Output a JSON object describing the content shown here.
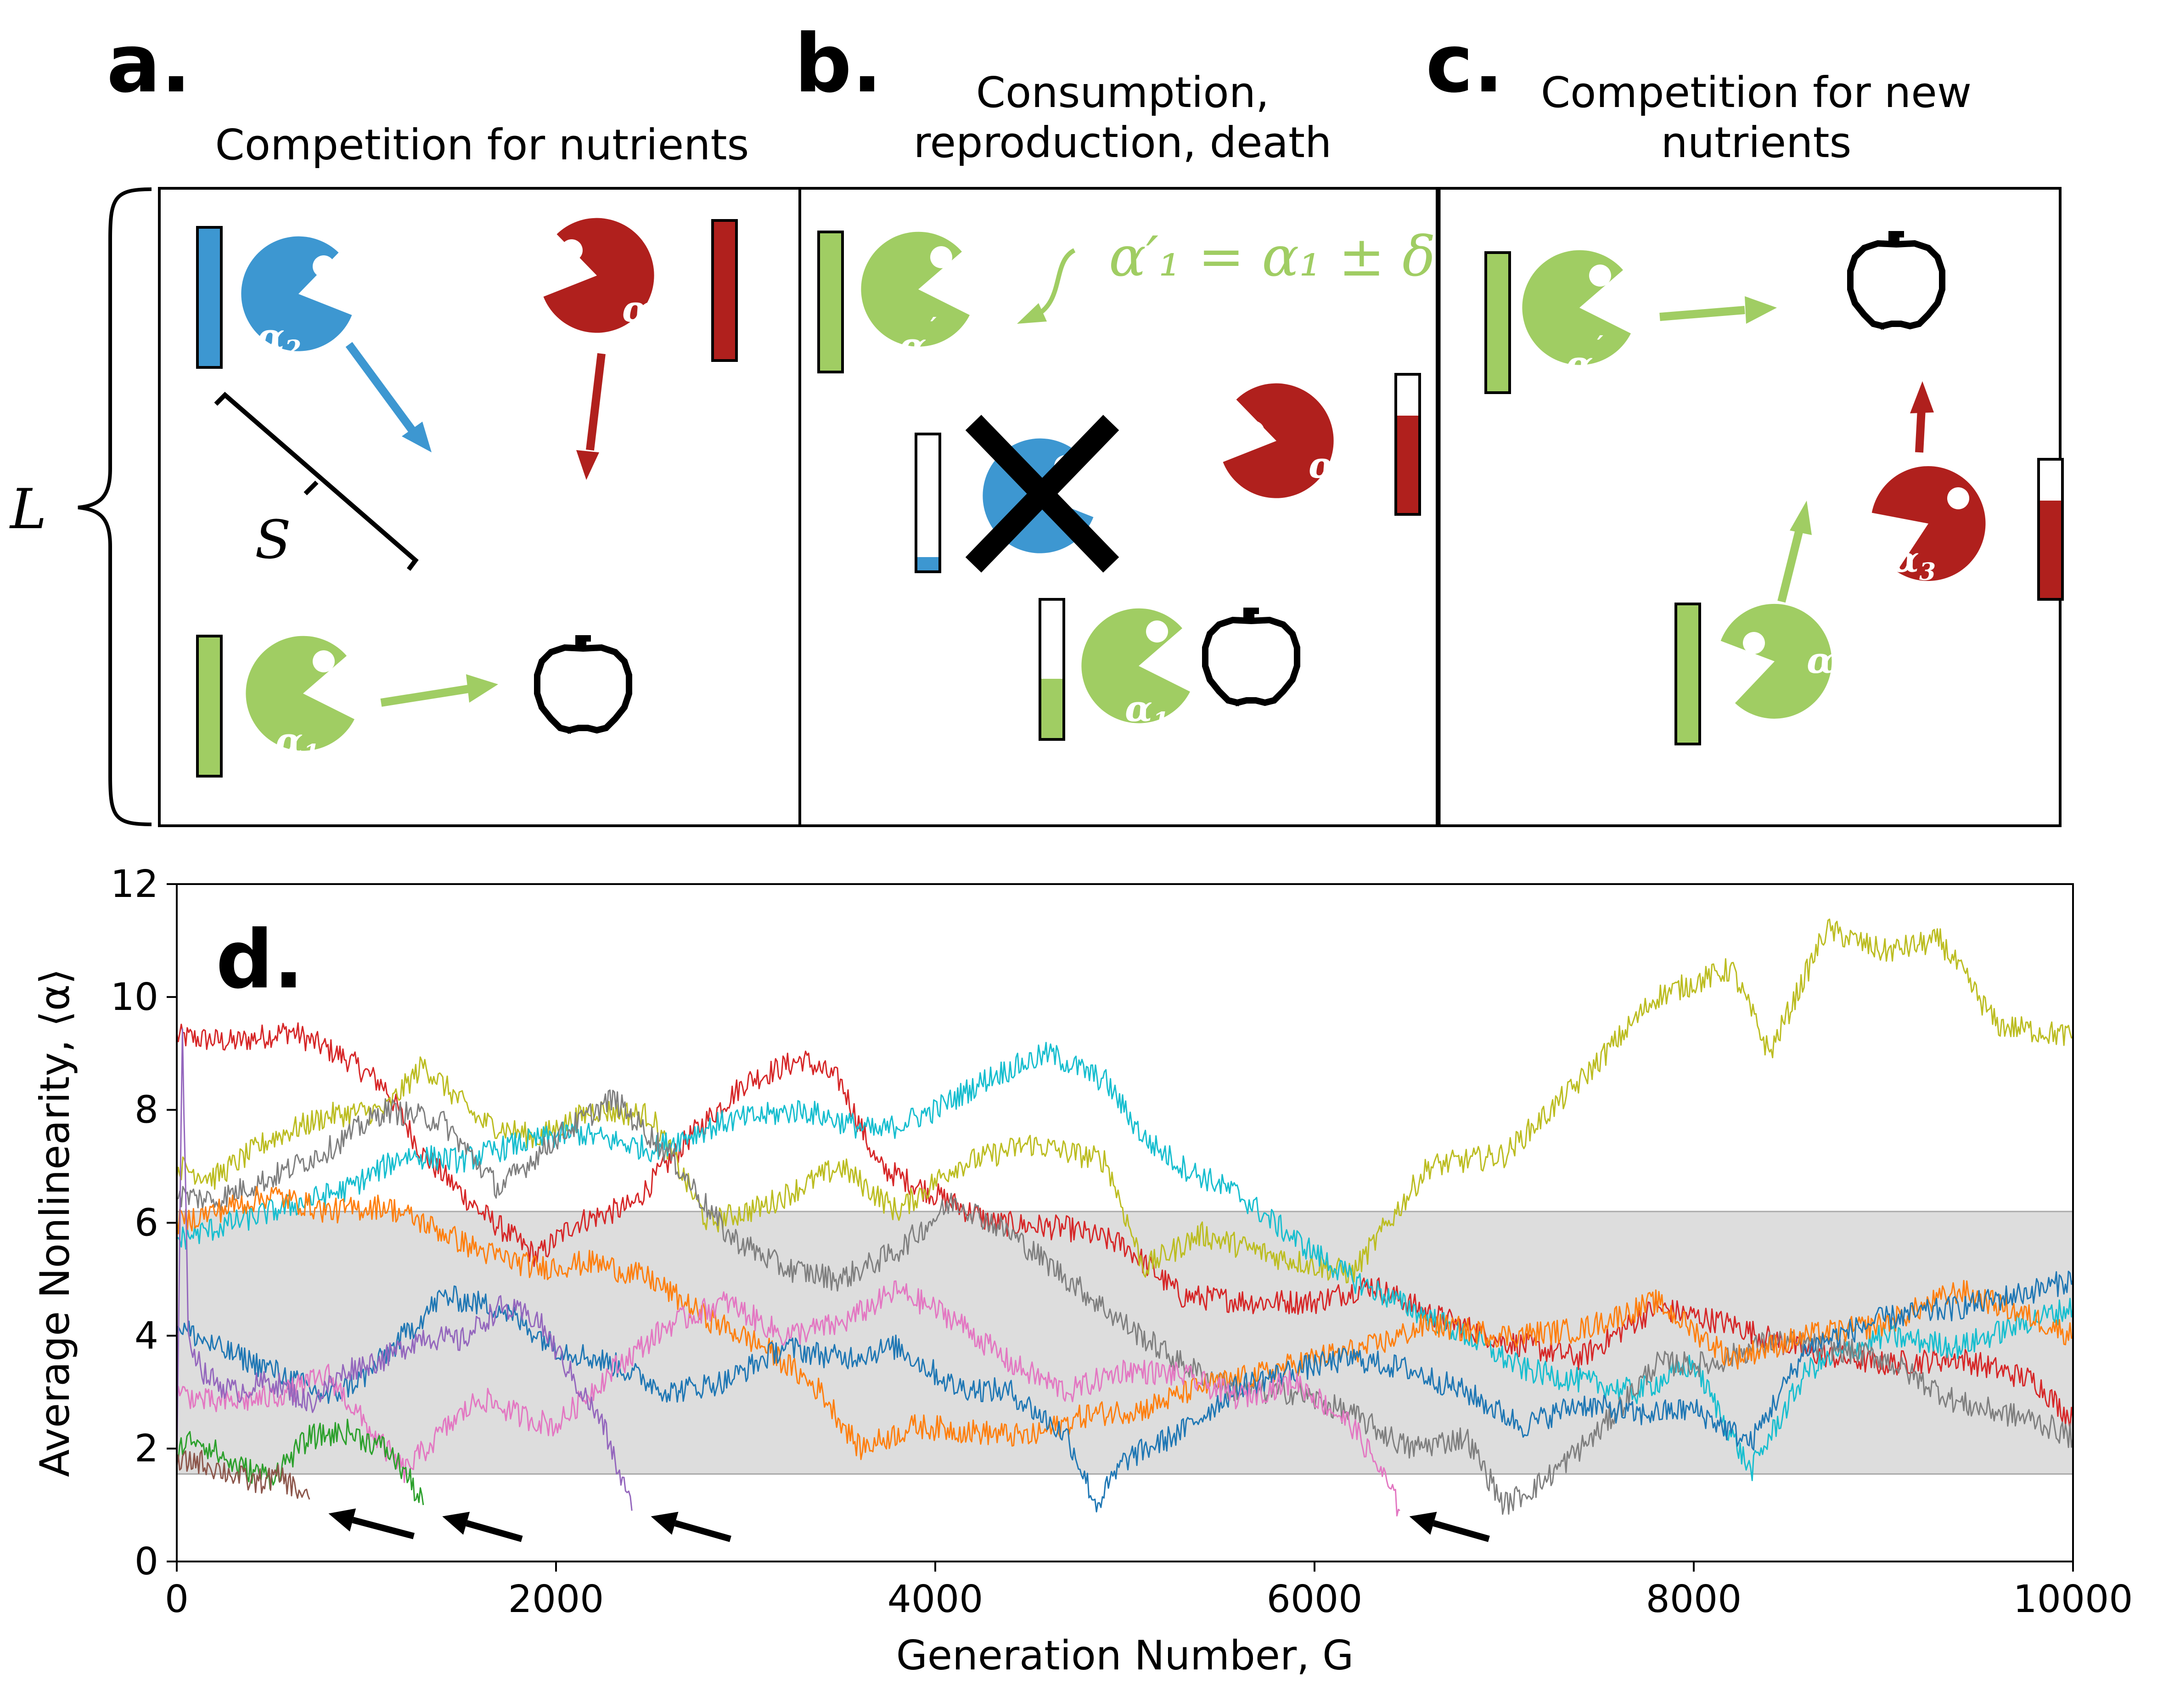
{
  "panels": {
    "a": {
      "letter": "a.",
      "title": "Competition for nutrients"
    },
    "b": {
      "letter": "b.",
      "title_line1": "Consumption,",
      "title_line2": "reproduction, death"
    },
    "c": {
      "letter": "c.",
      "title_line1": "Competition for new",
      "title_line2": "nutrients"
    },
    "d": {
      "letter": "d."
    }
  },
  "labels": {
    "L": "L",
    "S": "S",
    "alpha": "α",
    "sub1": "1",
    "sub2": "2",
    "sub3": "3",
    "prime": "′",
    "mutation": "α′₁ = α₁ ± δ"
  },
  "colors": {
    "green": "#a0cd63",
    "blue": "#3d97d1",
    "red": "#b0201d",
    "band": "#dddddd"
  },
  "icons": [
    "pacman-icon",
    "apple-icon",
    "energy-bar-icon",
    "death-cross-icon",
    "arrow-icon"
  ],
  "chart_data": {
    "type": "line",
    "xlabel": "Generation Number, G",
    "ylabel": "Average Nonlinearity, ⟨α⟩",
    "xlim": [
      0,
      10000
    ],
    "ylim": [
      0,
      12
    ],
    "xticks": [
      "0",
      "2000",
      "4000",
      "6000",
      "8000",
      "10000"
    ],
    "yticks": [
      "0",
      "2",
      "4",
      "6",
      "8",
      "10",
      "12"
    ],
    "band": {
      "ymin": 1.55,
      "ymax": 6.2
    },
    "series": [
      {
        "name": "red",
        "color": "#d62728",
        "x": [
          0,
          300,
          600,
          900,
          1100,
          1300,
          1600,
          1900,
          2100,
          2400,
          2700,
          3000,
          3300,
          3500,
          3700,
          4000,
          4300,
          4700,
          5000,
          5300,
          5700,
          6000,
          6300,
          6600,
          7000,
          7400,
          7800,
          8200,
          8600,
          9000,
          9400,
          9800,
          10000
        ],
        "y": [
          9.3,
          9.2,
          9.4,
          8.9,
          8.4,
          7.2,
          6.2,
          5.4,
          6.0,
          6.3,
          7.5,
          8.5,
          8.9,
          8.5,
          7.0,
          6.5,
          6.0,
          5.9,
          5.6,
          4.7,
          4.6,
          4.6,
          4.9,
          4.4,
          3.9,
          3.6,
          4.5,
          4.2,
          3.7,
          3.5,
          3.6,
          3.2,
          2.5
        ]
      },
      {
        "name": "olive",
        "color": "#bcbd22",
        "x": [
          0,
          200,
          500,
          800,
          1100,
          1300,
          1600,
          1900,
          2200,
          2500,
          2800,
          3100,
          3500,
          3800,
          4100,
          4500,
          4900,
          5100,
          5400,
          5800,
          6200,
          6600,
          7000,
          7400,
          7800,
          8200,
          8400,
          8700,
          9000,
          9300,
          9600,
          10000
        ],
        "y": [
          7.0,
          6.8,
          7.5,
          7.9,
          8.0,
          8.8,
          7.8,
          7.5,
          8.0,
          7.9,
          6.0,
          6.3,
          7.0,
          6.2,
          7.0,
          7.4,
          7.1,
          5.2,
          5.8,
          5.4,
          5.1,
          7.0,
          7.2,
          8.5,
          10.0,
          10.5,
          9.0,
          11.2,
          10.8,
          11.0,
          9.5,
          9.3
        ]
      },
      {
        "name": "cyan",
        "color": "#17becf",
        "x": [
          0,
          300,
          600,
          900,
          1200,
          1500,
          1800,
          2100,
          2500,
          2900,
          3300,
          3700,
          4000,
          4300,
          4600,
          4900,
          5100,
          5300,
          5600,
          5900,
          6200,
          6500,
          6800,
          7100,
          7400,
          7700,
          8000,
          8300,
          8600,
          9000,
          9400,
          9800,
          10000
        ],
        "y": [
          5.7,
          6.0,
          6.3,
          6.6,
          7.2,
          7.1,
          7.4,
          7.6,
          7.3,
          7.8,
          8.0,
          7.6,
          8.0,
          8.6,
          9.0,
          8.5,
          7.5,
          7.0,
          6.5,
          5.7,
          5.0,
          4.5,
          4.0,
          3.4,
          3.2,
          3.0,
          3.5,
          1.6,
          3.4,
          4.0,
          3.8,
          4.3,
          4.5
        ]
      },
      {
        "name": "gray",
        "color": "#7f7f7f",
        "x": [
          0,
          200,
          500,
          800,
          1100,
          1400,
          1700,
          2000,
          2300,
          2600,
          2900,
          3200,
          3500,
          3800,
          4100,
          4400,
          4700,
          5000,
          5300,
          5600,
          5900,
          6200,
          6500,
          6800,
          7000,
          7200,
          7500,
          7800,
          8100,
          8400,
          8700,
          9000,
          9400,
          9800,
          10000
        ],
        "y": [
          6.5,
          6.4,
          6.8,
          7.3,
          8.0,
          7.8,
          6.6,
          7.5,
          8.2,
          7.2,
          5.8,
          5.2,
          5.0,
          5.5,
          6.4,
          5.8,
          5.0,
          4.2,
          3.5,
          3.0,
          3.0,
          2.6,
          2.0,
          2.2,
          1.0,
          1.4,
          2.3,
          3.5,
          3.5,
          3.9,
          3.8,
          3.6,
          2.8,
          2.5,
          2.2
        ]
      },
      {
        "name": "orange",
        "color": "#ff7f0e",
        "x": [
          0,
          200,
          500,
          800,
          1100,
          1300,
          1600,
          1900,
          2200,
          2500,
          2800,
          3100,
          3400,
          3600,
          3900,
          4200,
          4500,
          4800,
          5100,
          5400,
          5700,
          6000,
          6300,
          6600,
          7000,
          7400,
          7800,
          8200,
          8600,
          9000,
          9400,
          9800,
          10000
        ],
        "y": [
          6.0,
          6.2,
          6.5,
          6.2,
          6.3,
          6.0,
          5.5,
          5.2,
          5.3,
          5.0,
          4.3,
          3.8,
          3.0,
          2.0,
          2.4,
          2.3,
          2.2,
          2.6,
          2.7,
          3.1,
          3.3,
          3.6,
          3.8,
          4.2,
          4.0,
          4.1,
          4.6,
          3.6,
          4.0,
          4.2,
          4.8,
          4.3,
          4.0
        ]
      },
      {
        "name": "blue",
        "color": "#1f77b4",
        "x": [
          0,
          200,
          500,
          800,
          1000,
          1200,
          1400,
          1700,
          2000,
          2300,
          2600,
          2900,
          3200,
          3500,
          3800,
          4100,
          4400,
          4700,
          4850,
          5000,
          5300,
          5600,
          5900,
          6200,
          6500,
          6800,
          7100,
          7400,
          7700,
          8000,
          8300,
          8600,
          9000,
          9400,
          9800,
          10000
        ],
        "y": [
          4.2,
          3.8,
          3.4,
          2.9,
          3.3,
          4.0,
          4.7,
          4.5,
          3.8,
          3.5,
          3.0,
          3.2,
          3.8,
          3.6,
          3.8,
          3.1,
          3.0,
          2.2,
          1.0,
          1.8,
          2.3,
          3.1,
          3.4,
          3.6,
          3.4,
          3.0,
          2.4,
          2.8,
          2.6,
          2.7,
          2.1,
          3.8,
          4.3,
          4.5,
          4.8,
          5.0
        ]
      },
      {
        "name": "pink",
        "color": "#e377c2",
        "x": [
          0,
          200,
          500,
          800,
          1000,
          1200,
          1400,
          1600,
          1800,
          2000,
          2300,
          2600,
          2900,
          3200,
          3500,
          3800,
          4100,
          4400,
          4700,
          5000,
          5300,
          5600,
          5900,
          6200,
          6350,
          6450
        ],
        "y": [
          3.0,
          2.8,
          2.9,
          3.3,
          2.4,
          1.6,
          2.3,
          2.9,
          2.6,
          2.4,
          3.4,
          4.2,
          4.6,
          4.0,
          4.2,
          4.8,
          4.3,
          3.5,
          3.0,
          3.4,
          3.3,
          2.9,
          3.2,
          2.4,
          1.6,
          0.9
        ]
      },
      {
        "name": "purple",
        "color": "#9467bd",
        "x": [
          0,
          30,
          60,
          150,
          300,
          500,
          700,
          900,
          1100,
          1300,
          1500,
          1700,
          1900,
          2100,
          2250,
          2350,
          2400
        ],
        "y": [
          1.8,
          9.5,
          4.0,
          3.3,
          3.0,
          3.2,
          2.8,
          3.4,
          3.6,
          4.0,
          3.9,
          4.5,
          4.3,
          3.2,
          2.4,
          1.4,
          0.9
        ]
      },
      {
        "name": "green",
        "color": "#2ca02c",
        "x": [
          0,
          100,
          300,
          500,
          700,
          900,
          1100,
          1200,
          1300
        ],
        "y": [
          2.0,
          2.2,
          1.7,
          1.5,
          2.2,
          2.3,
          2.0,
          1.6,
          1.0
        ]
      },
      {
        "name": "brown",
        "color": "#8c564b",
        "x": [
          0,
          100,
          250,
          400,
          550,
          700
        ],
        "y": [
          1.7,
          1.8,
          1.6,
          1.4,
          1.5,
          1.1
        ]
      }
    ],
    "annotations": [
      {
        "type": "arrow",
        "tip": [
          800,
          0.85
        ],
        "tail": [
          1250,
          0.45
        ]
      },
      {
        "type": "arrow",
        "tip": [
          1400,
          0.8
        ],
        "tail": [
          1820,
          0.4
        ]
      },
      {
        "type": "arrow",
        "tip": [
          2500,
          0.8
        ],
        "tail": [
          2920,
          0.4
        ]
      },
      {
        "type": "arrow",
        "tip": [
          6500,
          0.8
        ],
        "tail": [
          6920,
          0.4
        ]
      }
    ]
  }
}
